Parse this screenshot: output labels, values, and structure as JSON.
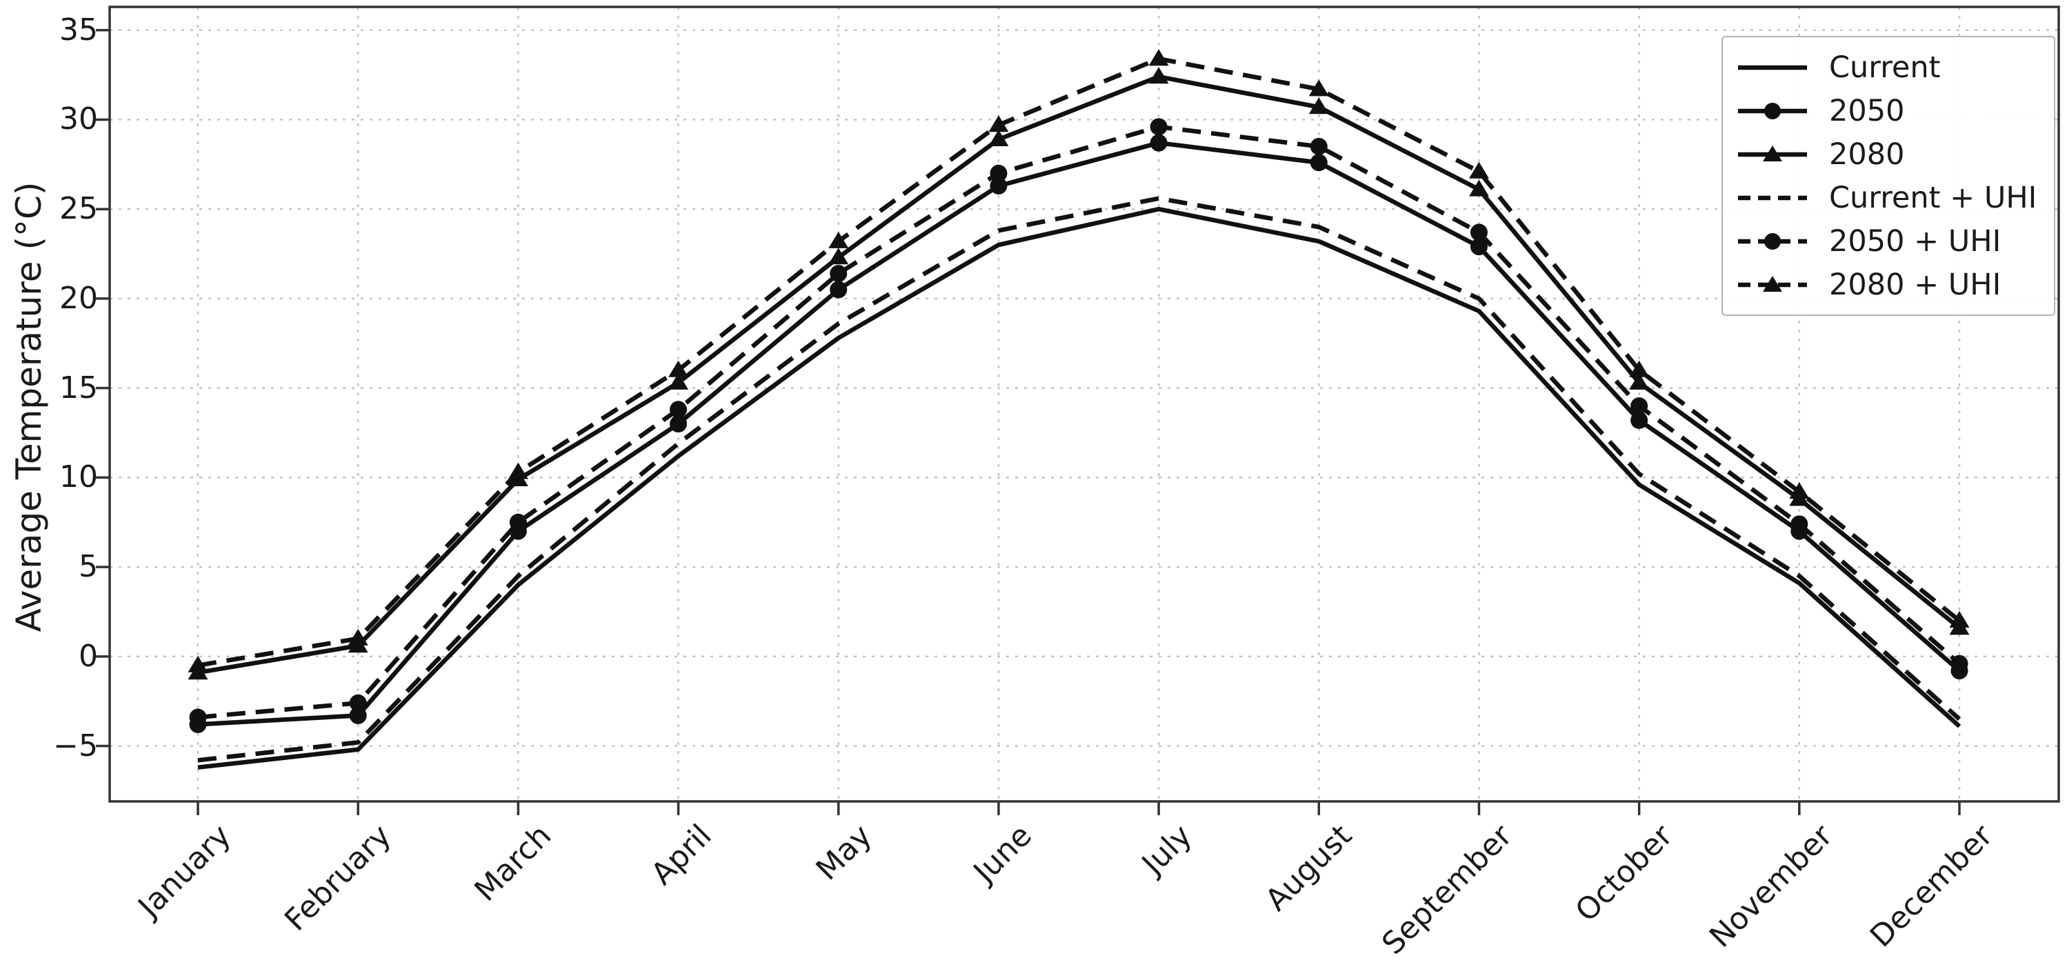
{
  "figure": {
    "background": "#ffffff",
    "series_color": "#111111",
    "grid_color": "#c2c2c2",
    "spine_color": "#333333",
    "text_color": "#1a1a1a",
    "legend_border_color": "#b3b3b3"
  },
  "chart_data": {
    "type": "line",
    "title": "",
    "xlabel": "",
    "ylabel": "Average Temperature (°C)",
    "grid": true,
    "legend_position": "upper right",
    "ylim": [
      -8.1,
      36.3
    ],
    "yticks": [
      35,
      30,
      25,
      20,
      15,
      10,
      5,
      0,
      -5
    ],
    "categories": [
      "January",
      "February",
      "March",
      "April",
      "May",
      "June",
      "July",
      "August",
      "September",
      "October",
      "November",
      "December"
    ],
    "series": [
      {
        "name": "Current",
        "line": "solid",
        "marker": "none",
        "values": [
          -6.2,
          -5.2,
          4.0,
          11.2,
          17.8,
          23.0,
          25.0,
          23.2,
          19.3,
          9.6,
          4.1,
          -3.9
        ]
      },
      {
        "name": "2050",
        "line": "solid",
        "marker": "circle",
        "values": [
          -3.8,
          -3.3,
          7.0,
          13.0,
          20.5,
          26.3,
          28.7,
          27.6,
          22.9,
          13.2,
          7.0,
          -0.8
        ]
      },
      {
        "name": "2080",
        "line": "solid",
        "marker": "triangle",
        "values": [
          -0.9,
          0.6,
          9.9,
          15.3,
          22.3,
          28.9,
          32.4,
          30.7,
          26.1,
          15.3,
          8.8,
          1.6
        ]
      },
      {
        "name": "Current + UHI",
        "line": "dashed",
        "marker": "none",
        "values": [
          -5.8,
          -4.8,
          4.5,
          11.9,
          18.6,
          23.8,
          25.6,
          24.0,
          20.0,
          10.2,
          4.5,
          -3.5
        ]
      },
      {
        "name": "2050 + UHI",
        "line": "dashed",
        "marker": "circle",
        "values": [
          -3.4,
          -2.6,
          7.5,
          13.8,
          21.4,
          27.0,
          29.6,
          28.5,
          23.7,
          14.0,
          7.4,
          -0.4
        ]
      },
      {
        "name": "2080 + UHI",
        "line": "dashed",
        "marker": "triangle",
        "values": [
          -0.5,
          1.0,
          10.3,
          16.0,
          23.2,
          29.7,
          33.4,
          31.7,
          27.1,
          16.0,
          9.2,
          2.0
        ]
      }
    ]
  }
}
